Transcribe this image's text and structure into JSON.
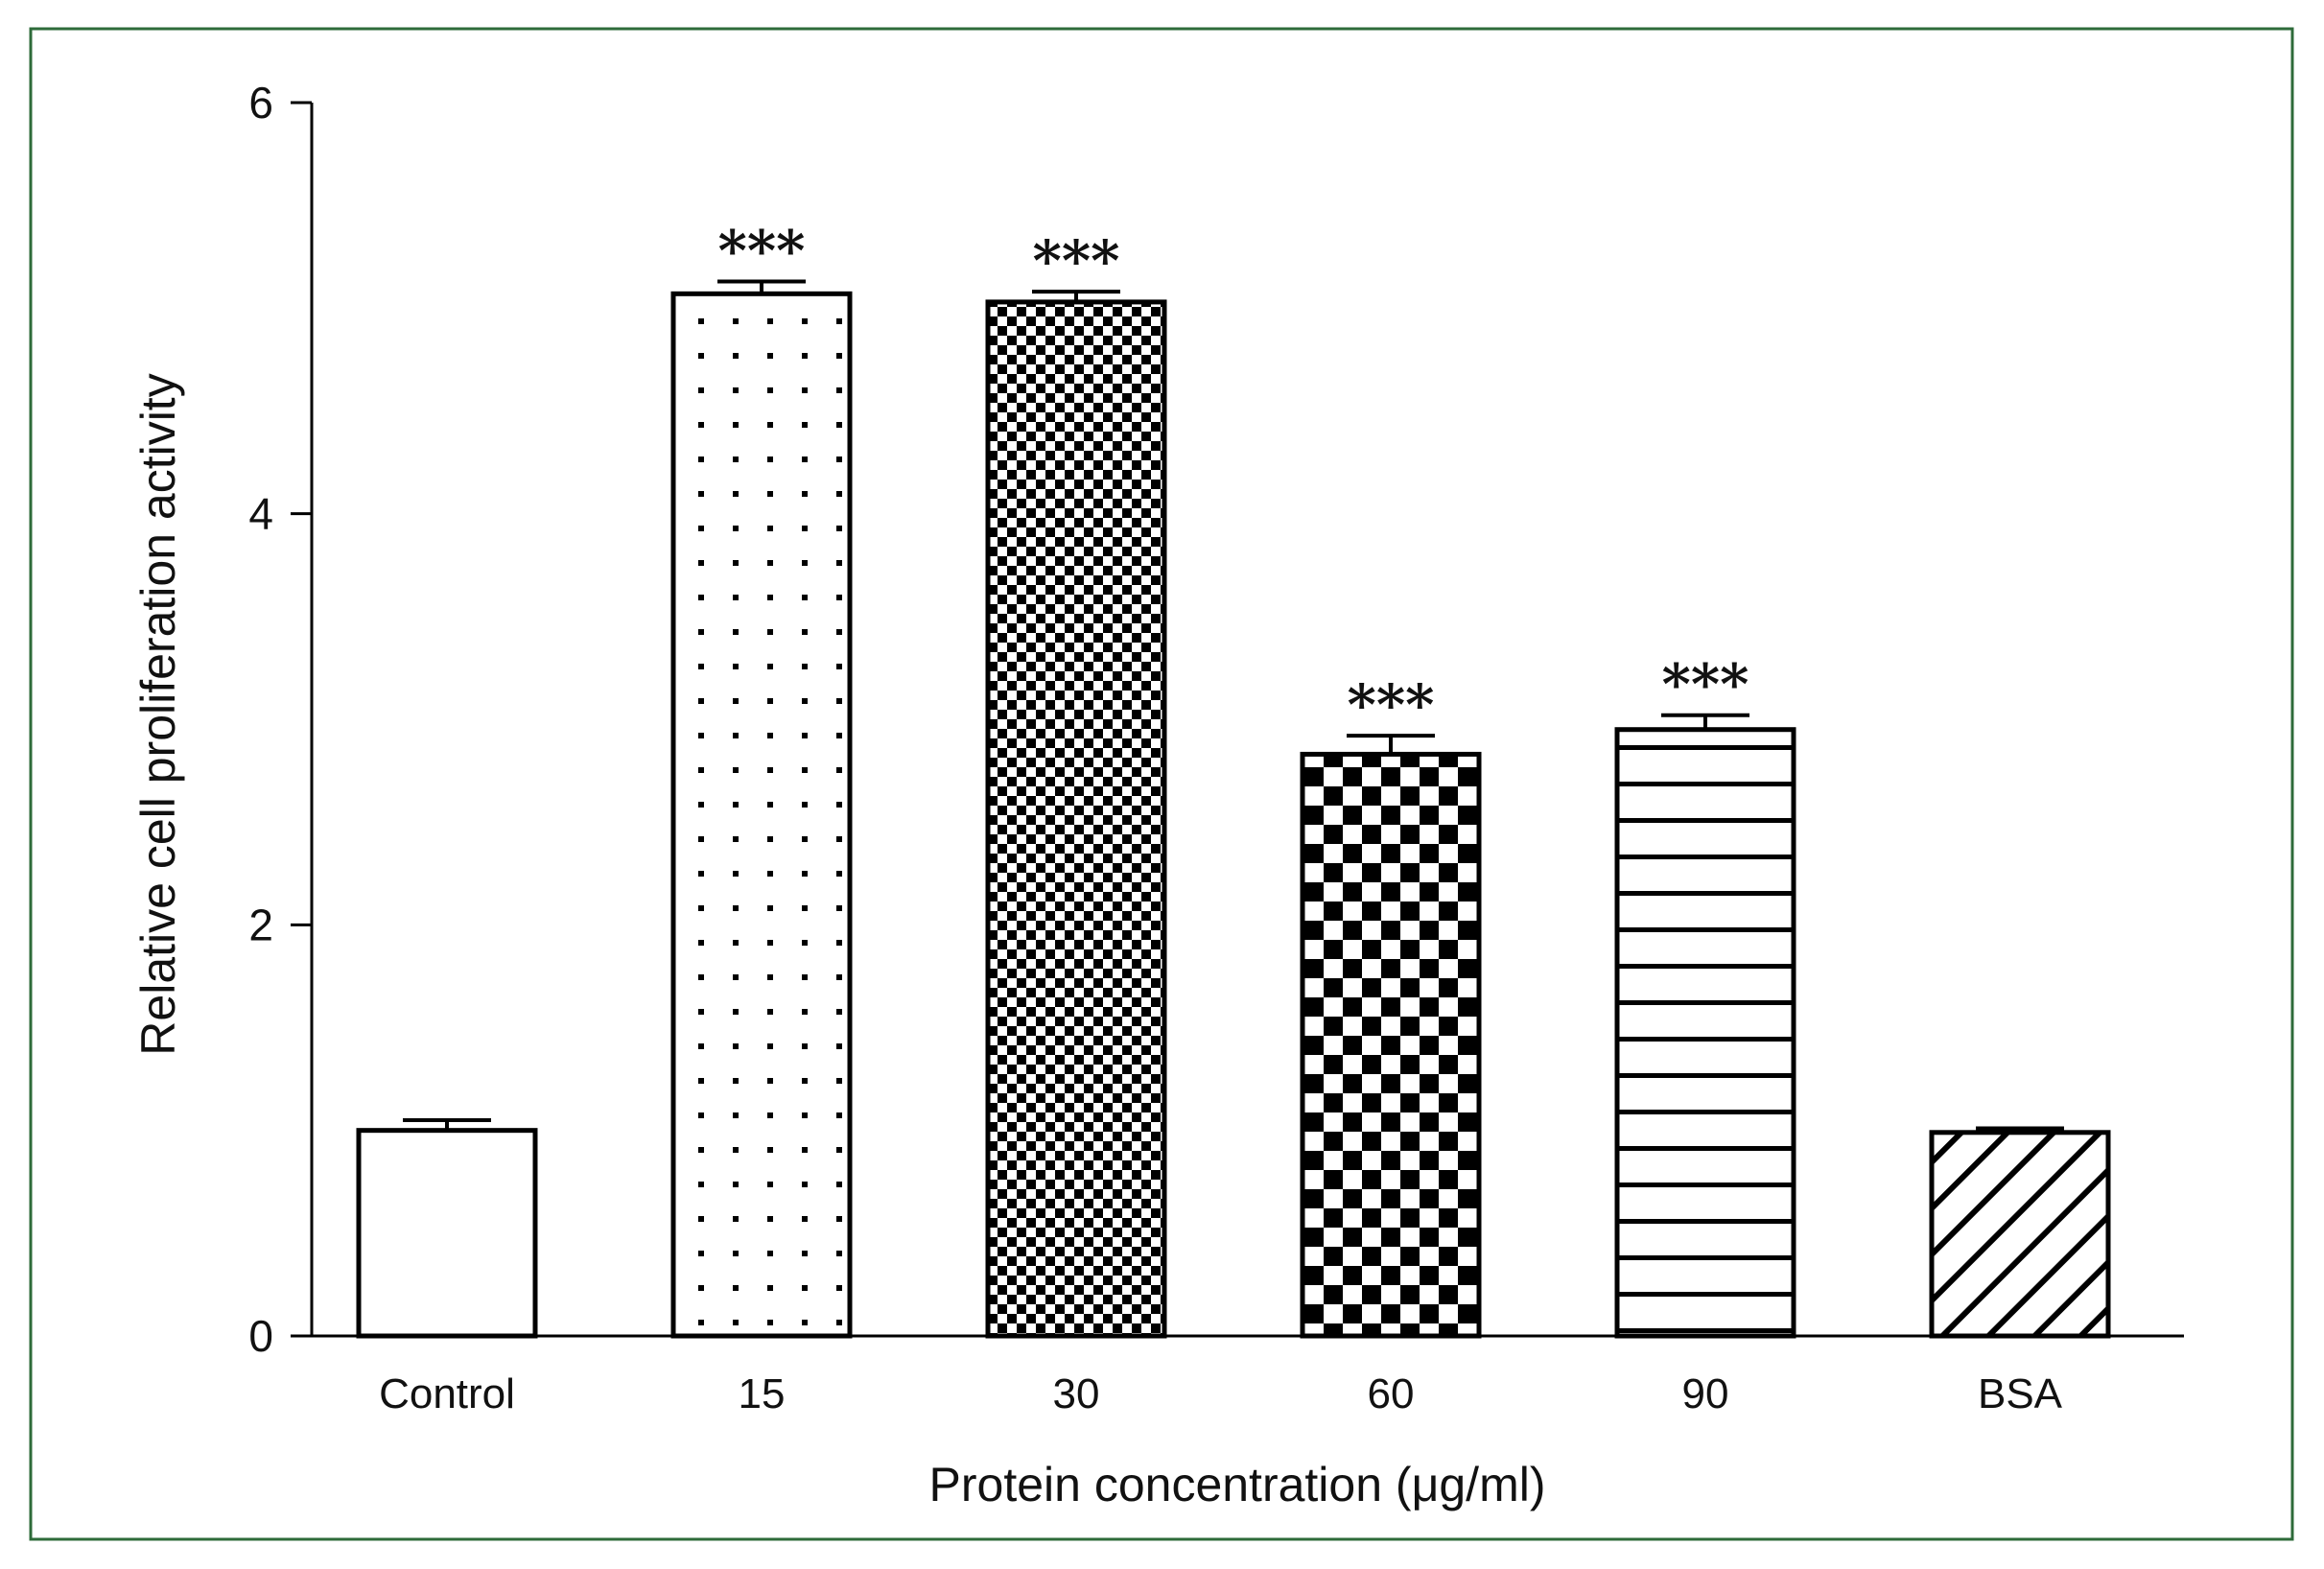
{
  "chart_data": {
    "type": "bar",
    "categories": [
      "Control",
      "15",
      "30",
      "60",
      "90",
      "BSA"
    ],
    "values": [
      1.0,
      5.07,
      5.03,
      2.83,
      2.95,
      0.99
    ],
    "errors": [
      0.05,
      0.06,
      0.05,
      0.09,
      0.07,
      0.02
    ],
    "significance": [
      "",
      "***",
      "***",
      "***",
      "***",
      ""
    ],
    "patterns": [
      "white",
      "dots",
      "fine-checker",
      "checker",
      "hstripes",
      "diagonal"
    ],
    "xlabel": "Protein concentration (μg/ml)",
    "ylabel": "Relative cell proliferation activity",
    "ylim": [
      0,
      6
    ],
    "yticks": [
      "0",
      "2",
      "4",
      "6"
    ],
    "grid": false,
    "colors": {
      "frame": "#2e6b3a",
      "bar_stroke": "#000000",
      "fill": "#ffffff"
    }
  }
}
